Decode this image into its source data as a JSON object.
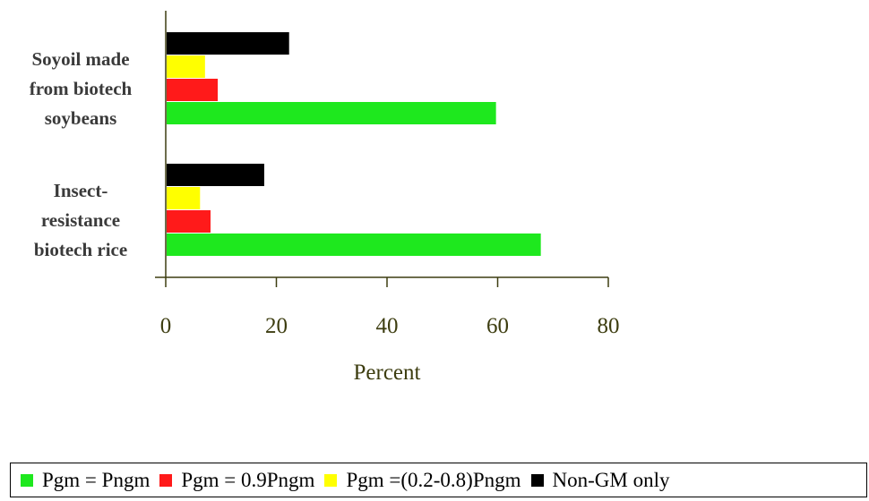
{
  "chart_data": {
    "type": "bar",
    "orientation": "horizontal",
    "categories": [
      [
        "Soyoil made",
        "from biotech",
        "soybeans"
      ],
      [
        "Insect-",
        "resistance",
        "biotech rice"
      ]
    ],
    "series": [
      {
        "name": "Pgm = Pngm",
        "color": "#1ee81e",
        "values": [
          59.7,
          67.8
        ]
      },
      {
        "name": "Pgm = 0.9Pngm",
        "color": "#ff1a1a",
        "values": [
          9.4,
          8.1
        ]
      },
      {
        "name": "Pgm =(0.2-0.8)Pngm",
        "color": "#ffff00",
        "values": [
          7.1,
          6.2
        ]
      },
      {
        "name": "Non-GM only",
        "color": "#000000",
        "values": [
          22.3,
          17.8
        ]
      }
    ],
    "xlabel": "Percent",
    "xlim": [
      0,
      80
    ],
    "xticks": [
      "0",
      "20",
      "40",
      "60",
      "80"
    ],
    "legend_position": "bottom",
    "grid": false
  }
}
